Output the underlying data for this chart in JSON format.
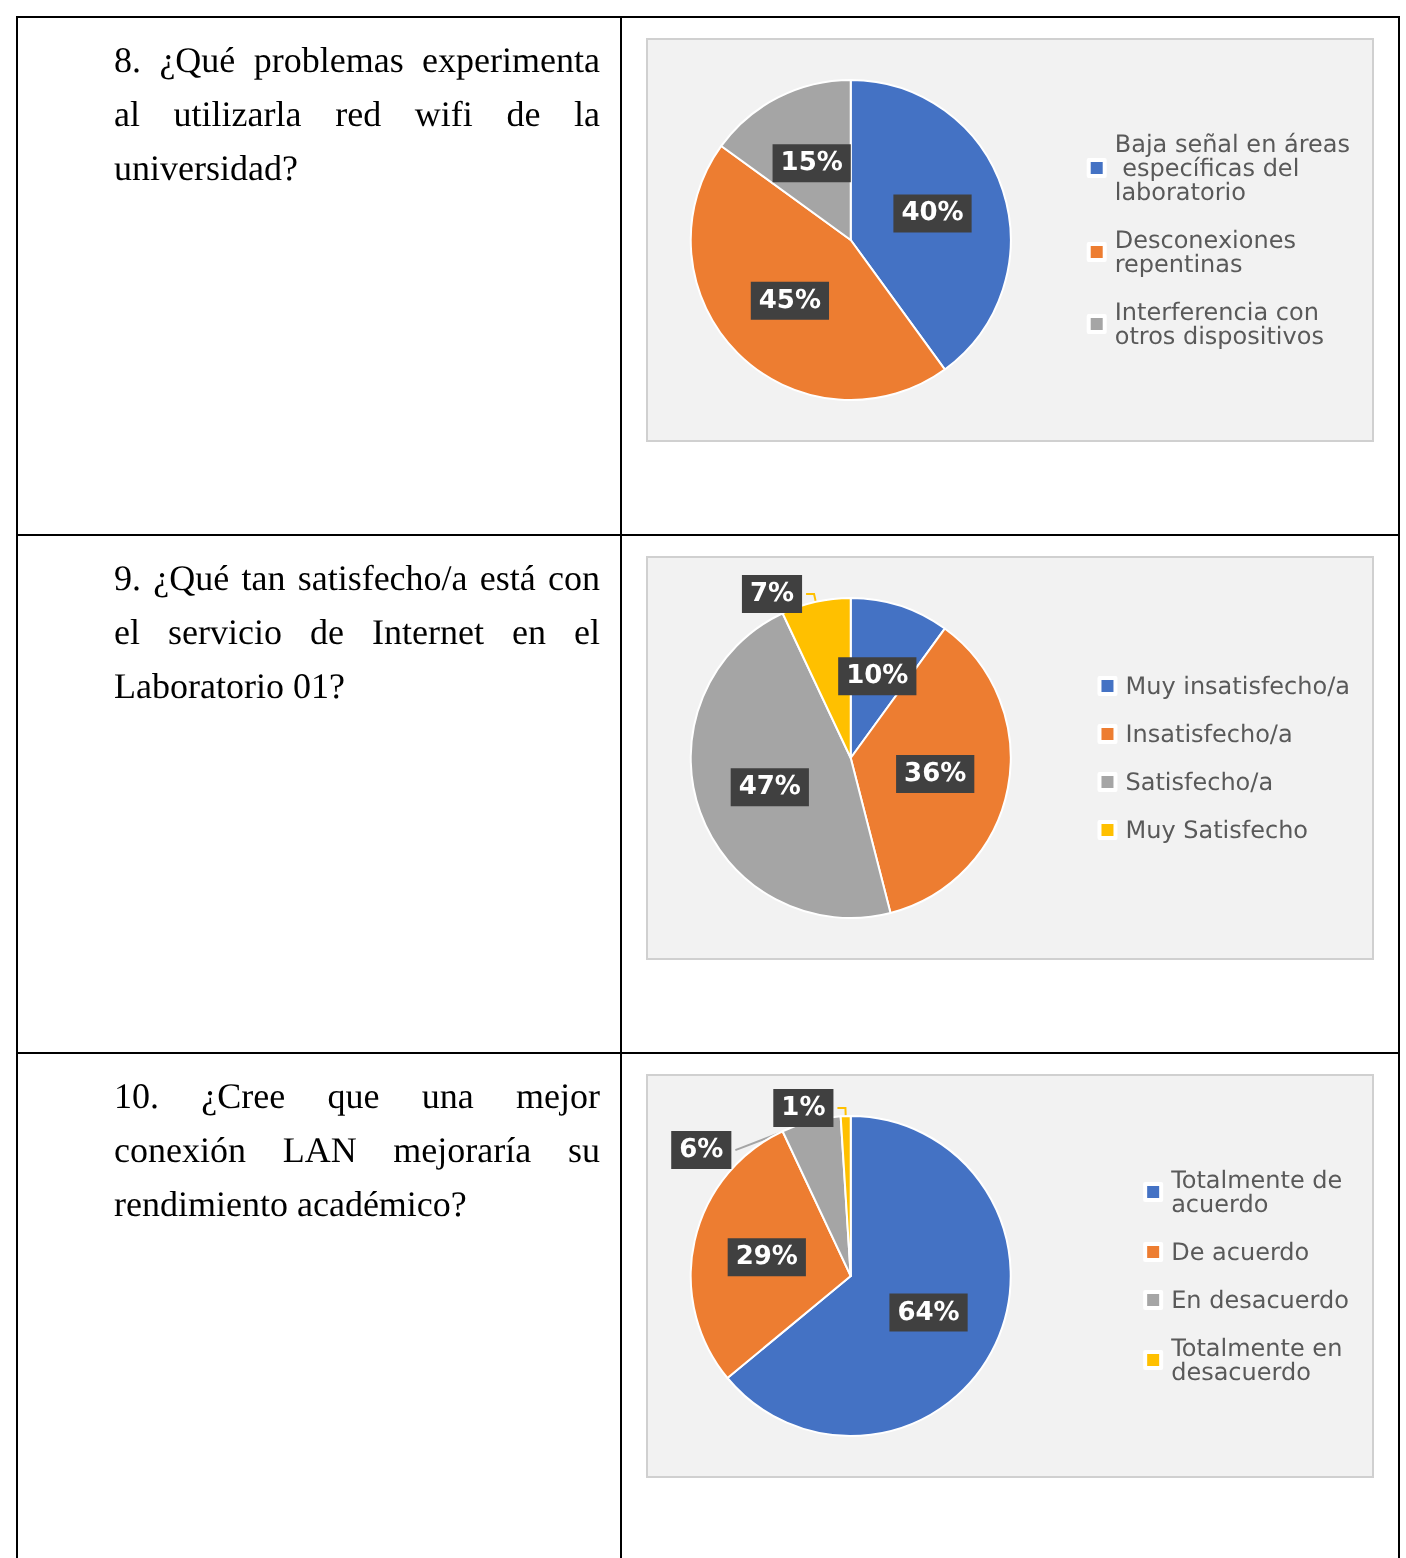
{
  "chart_data": [
    {
      "type": "pie",
      "title": "8. ¿Qué problemas experimenta al utilizarla red wifi de la universidad?",
      "categories": [
        "Baja señal en áreas específicas del laboratorio",
        "Desconexiones repentinas",
        "Interferencia con otros dispositivos"
      ],
      "values": [
        40,
        45,
        15
      ],
      "value_labels": [
        "40%",
        "45%",
        "15%"
      ],
      "colors": [
        "#4472c4",
        "#ed7d31",
        "#a5a5a5"
      ],
      "legend": "right"
    },
    {
      "type": "pie",
      "title": "9. ¿Qué tan satisfecho/a está con el servicio de Internet en el Laboratorio 01?",
      "categories": [
        "Muy insatisfecho/a",
        "Insatisfecho/a",
        "Satisfecho/a",
        "Muy Satisfecho"
      ],
      "values": [
        10,
        36,
        47,
        7
      ],
      "value_labels": [
        "10%",
        "36%",
        "47%",
        "7%"
      ],
      "colors": [
        "#4472c4",
        "#ed7d31",
        "#a5a5a5",
        "#ffc000"
      ],
      "legend": "right"
    },
    {
      "type": "pie",
      "title": "10. ¿Cree que una mejor conexión LAN mejoraría su rendimiento académico?",
      "categories": [
        "Totalmente de acuerdo",
        "De acuerdo",
        "En desacuerdo",
        "Totalmente en desacuerdo"
      ],
      "values": [
        64,
        29,
        6,
        1
      ],
      "value_labels": [
        "64%",
        "29%",
        "6%",
        "1%"
      ],
      "colors": [
        "#4472c4",
        "#ed7d31",
        "#a5a5a5",
        "#ffc000"
      ],
      "legend": "right"
    }
  ]
}
